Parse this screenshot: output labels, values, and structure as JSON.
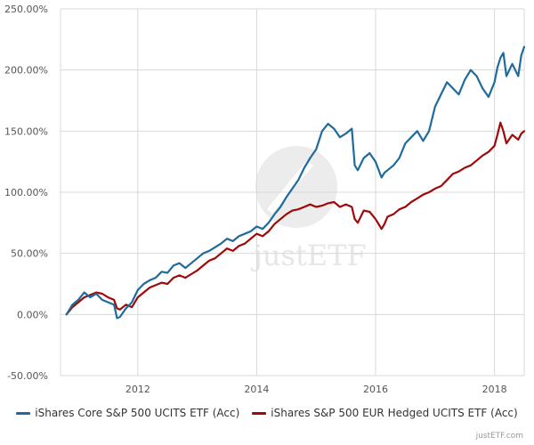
{
  "colors": {
    "series1": "#1f6b9c",
    "series2": "#9e0a0a"
  },
  "watermark": {
    "text": "justETF"
  },
  "credit": "justETF.com",
  "chart_data": {
    "type": "line",
    "title": "",
    "xlabel": "",
    "ylabel": "",
    "xlim": [
      2010.7,
      2018.5
    ],
    "ylim": [
      -50,
      250
    ],
    "grid": true,
    "legend_position": "bottom",
    "x_ticks": [
      2012,
      2014,
      2016,
      2018
    ],
    "x_tick_labels": [
      "2012",
      "2014",
      "2016",
      "2018"
    ],
    "y_ticks": [
      -50,
      0,
      50,
      100,
      150,
      200,
      250
    ],
    "y_tick_labels": [
      "-50.00%",
      "0.00%",
      "50.00%",
      "100.00%",
      "150.00%",
      "200.00%",
      "250.00%"
    ],
    "series": [
      {
        "name": "iShares Core S&P 500 UCITS ETF (Acc)",
        "x": [
          2010.8,
          2010.9,
          2011.0,
          2011.1,
          2011.2,
          2011.3,
          2011.4,
          2011.5,
          2011.6,
          2011.65,
          2011.7,
          2011.8,
          2011.9,
          2012.0,
          2012.1,
          2012.2,
          2012.3,
          2012.4,
          2012.5,
          2012.6,
          2012.7,
          2012.8,
          2012.9,
          2013.0,
          2013.1,
          2013.2,
          2013.3,
          2013.4,
          2013.5,
          2013.6,
          2013.7,
          2013.8,
          2013.9,
          2014.0,
          2014.1,
          2014.2,
          2014.3,
          2014.4,
          2014.5,
          2014.6,
          2014.7,
          2014.8,
          2014.9,
          2015.0,
          2015.1,
          2015.2,
          2015.3,
          2015.4,
          2015.5,
          2015.6,
          2015.65,
          2015.7,
          2015.8,
          2015.9,
          2016.0,
          2016.1,
          2016.15,
          2016.2,
          2016.3,
          2016.4,
          2016.5,
          2016.6,
          2016.7,
          2016.8,
          2016.9,
          2017.0,
          2017.1,
          2017.2,
          2017.3,
          2017.4,
          2017.5,
          2017.6,
          2017.7,
          2017.8,
          2017.9,
          2018.0,
          2018.05,
          2018.1,
          2018.15,
          2018.2,
          2018.3,
          2018.4,
          2018.45,
          2018.5
        ],
        "values": [
          0,
          8,
          12,
          18,
          14,
          17,
          12,
          10,
          8,
          -3,
          -2,
          5,
          10,
          20,
          25,
          28,
          30,
          35,
          34,
          40,
          42,
          38,
          42,
          46,
          50,
          52,
          55,
          58,
          62,
          60,
          64,
          66,
          68,
          72,
          70,
          75,
          82,
          88,
          96,
          103,
          110,
          120,
          128,
          135,
          150,
          156,
          152,
          145,
          148,
          152,
          122,
          118,
          128,
          132,
          125,
          112,
          116,
          118,
          122,
          128,
          140,
          145,
          150,
          142,
          150,
          170,
          180,
          190,
          185,
          180,
          192,
          200,
          195,
          185,
          178,
          190,
          202,
          210,
          214,
          195,
          205,
          195,
          212,
          219
        ]
      },
      {
        "name": "iShares S&P 500 EUR Hedged UCITS ETF (Acc)",
        "x": [
          2010.8,
          2010.9,
          2011.0,
          2011.1,
          2011.2,
          2011.3,
          2011.4,
          2011.5,
          2011.6,
          2011.65,
          2011.7,
          2011.8,
          2011.9,
          2012.0,
          2012.1,
          2012.2,
          2012.3,
          2012.4,
          2012.5,
          2012.6,
          2012.7,
          2012.8,
          2012.9,
          2013.0,
          2013.1,
          2013.2,
          2013.3,
          2013.4,
          2013.5,
          2013.6,
          2013.7,
          2013.8,
          2013.9,
          2014.0,
          2014.1,
          2014.2,
          2014.3,
          2014.4,
          2014.5,
          2014.6,
          2014.7,
          2014.8,
          2014.9,
          2015.0,
          2015.1,
          2015.2,
          2015.3,
          2015.4,
          2015.5,
          2015.6,
          2015.65,
          2015.7,
          2015.8,
          2015.9,
          2016.0,
          2016.1,
          2016.15,
          2016.2,
          2016.3,
          2016.4,
          2016.5,
          2016.6,
          2016.7,
          2016.8,
          2016.9,
          2017.0,
          2017.1,
          2017.2,
          2017.3,
          2017.4,
          2017.5,
          2017.6,
          2017.7,
          2017.8,
          2017.9,
          2018.0,
          2018.05,
          2018.1,
          2018.15,
          2018.2,
          2018.3,
          2018.4,
          2018.45,
          2018.5
        ],
        "values": [
          0,
          6,
          10,
          14,
          16,
          18,
          17,
          14,
          12,
          5,
          4,
          8,
          6,
          14,
          18,
          22,
          24,
          26,
          25,
          30,
          32,
          30,
          33,
          36,
          40,
          44,
          46,
          50,
          54,
          52,
          56,
          58,
          62,
          66,
          64,
          68,
          74,
          78,
          82,
          85,
          86,
          88,
          90,
          88,
          89,
          91,
          92,
          88,
          90,
          88,
          78,
          75,
          85,
          84,
          78,
          70,
          74,
          80,
          82,
          86,
          88,
          92,
          95,
          98,
          100,
          103,
          105,
          110,
          115,
          117,
          120,
          122,
          126,
          130,
          133,
          138,
          147,
          157,
          150,
          140,
          147,
          143,
          148,
          150
        ]
      }
    ]
  }
}
